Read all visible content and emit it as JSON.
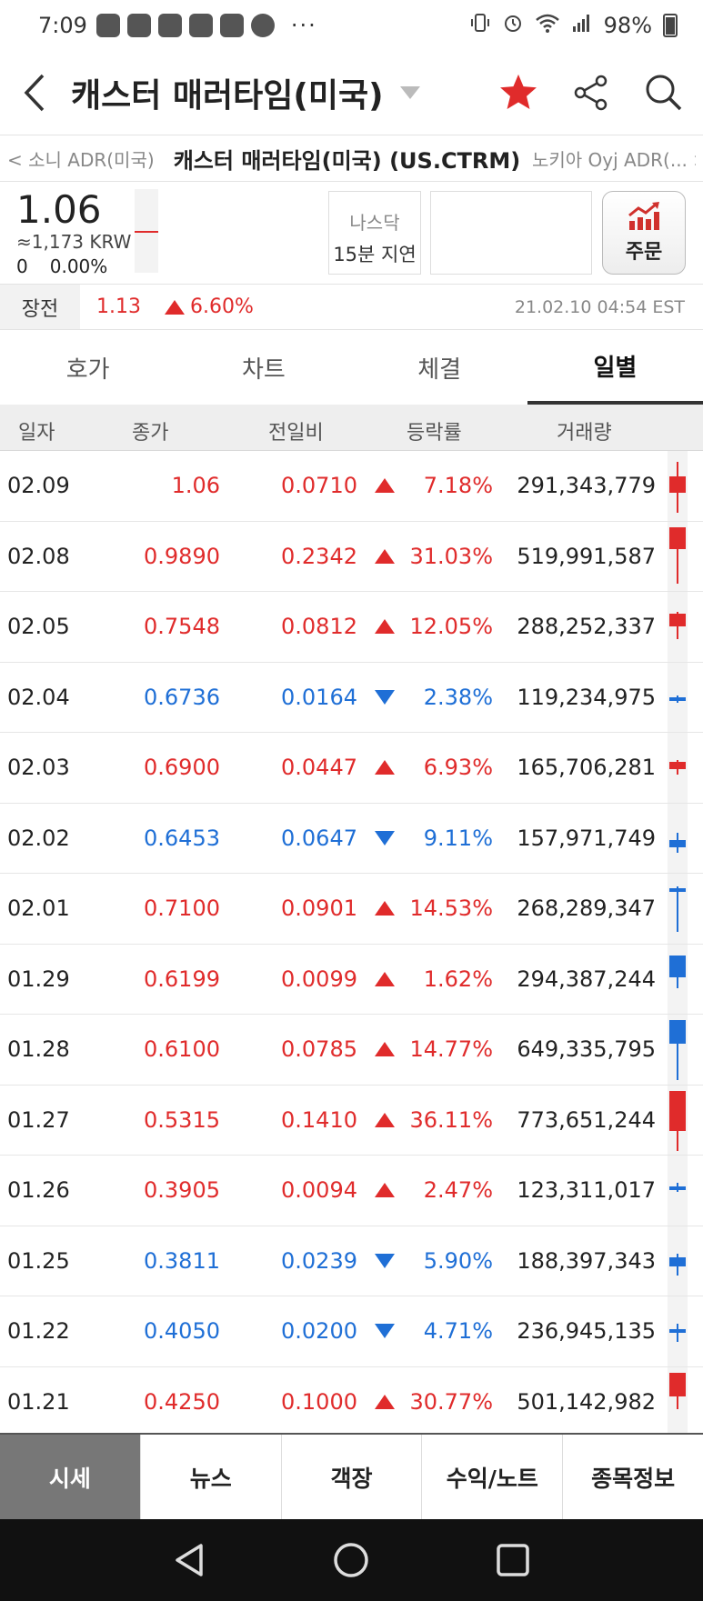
{
  "status_bar": {
    "time": "7:09",
    "battery": "98%",
    "dots": "···"
  },
  "header": {
    "title": "캐스터 매러타임(미국)"
  },
  "stock_nav": {
    "prev": "< 소니 ADR(미국)",
    "current": "캐스터 매러타임(미국) (US.CTRM)",
    "next": "노키아 Oyj ADR(... >"
  },
  "quote": {
    "price": "1.06",
    "krw": "≈1,173 KRW",
    "change": "0",
    "change_rate": "0.00%",
    "market": "나스닥",
    "delay": "15분 지연",
    "order_label": "주문"
  },
  "premarket": {
    "label": "장전",
    "price": "1.13",
    "rate": "6.60%",
    "timestamp": "21.02.10 04:54 EST"
  },
  "tabs": [
    {
      "label": "호가"
    },
    {
      "label": "차트"
    },
    {
      "label": "체결"
    },
    {
      "label": "일별"
    }
  ],
  "table": {
    "headers": {
      "date": "일자",
      "close": "종가",
      "diff": "전일비",
      "rate": "등락률",
      "volume": "거래량"
    },
    "rows": [
      {
        "date": "02.09",
        "close": "1.06",
        "diff": "0.0710",
        "dir": "up",
        "rate": "7.18%",
        "volume": "291,343,779"
      },
      {
        "date": "02.08",
        "close": "0.9890",
        "diff": "0.2342",
        "dir": "up",
        "rate": "31.03%",
        "volume": "519,991,587"
      },
      {
        "date": "02.05",
        "close": "0.7548",
        "diff": "0.0812",
        "dir": "up",
        "rate": "12.05%",
        "volume": "288,252,337"
      },
      {
        "date": "02.04",
        "close": "0.6736",
        "diff": "0.0164",
        "dir": "down",
        "rate": "2.38%",
        "volume": "119,234,975"
      },
      {
        "date": "02.03",
        "close": "0.6900",
        "diff": "0.0447",
        "dir": "up",
        "rate": "6.93%",
        "volume": "165,706,281"
      },
      {
        "date": "02.02",
        "close": "0.6453",
        "diff": "0.0647",
        "dir": "down",
        "rate": "9.11%",
        "volume": "157,971,749"
      },
      {
        "date": "02.01",
        "close": "0.7100",
        "diff": "0.0901",
        "dir": "up",
        "rate": "14.53%",
        "volume": "268,289,347"
      },
      {
        "date": "01.29",
        "close": "0.6199",
        "diff": "0.0099",
        "dir": "up",
        "rate": "1.62%",
        "volume": "294,387,244"
      },
      {
        "date": "01.28",
        "close": "0.6100",
        "diff": "0.0785",
        "dir": "up",
        "rate": "14.77%",
        "volume": "649,335,795"
      },
      {
        "date": "01.27",
        "close": "0.5315",
        "diff": "0.1410",
        "dir": "up",
        "rate": "36.11%",
        "volume": "773,651,244"
      },
      {
        "date": "01.26",
        "close": "0.3905",
        "diff": "0.0094",
        "dir": "up",
        "rate": "2.47%",
        "volume": "123,311,017"
      },
      {
        "date": "01.25",
        "close": "0.3811",
        "diff": "0.0239",
        "dir": "down",
        "rate": "5.90%",
        "volume": "188,397,343"
      },
      {
        "date": "01.22",
        "close": "0.4050",
        "diff": "0.0200",
        "dir": "down",
        "rate": "4.71%",
        "volume": "236,945,135"
      },
      {
        "date": "01.21",
        "close": "0.4250",
        "diff": "0.1000",
        "dir": "up",
        "rate": "30.77%",
        "volume": "501,142,982"
      }
    ]
  },
  "bottom_tabs": [
    {
      "label": "시세"
    },
    {
      "label": "뉴스"
    },
    {
      "label": "객장"
    },
    {
      "label": "수익/노트"
    },
    {
      "label": "종목정보"
    }
  ],
  "colors": {
    "up": "#e02b2b",
    "down": "#1f6fd6",
    "accent": "#e02b2b"
  }
}
